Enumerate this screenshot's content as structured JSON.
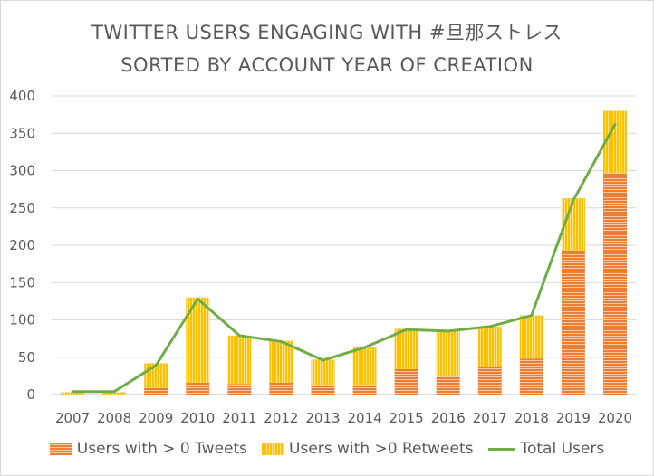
{
  "chart_data": {
    "type": "bar",
    "title_line1": "TWITTER USERS ENGAGING WITH #旦那ストレス",
    "title_line2": "SORTED BY ACCOUNT YEAR OF CREATION",
    "categories": [
      "2007",
      "2008",
      "2009",
      "2010",
      "2011",
      "2012",
      "2013",
      "2014",
      "2015",
      "2016",
      "2017",
      "2018",
      "2019",
      "2020"
    ],
    "series": [
      {
        "name": "Users with > 0 Tweets",
        "kind": "stacked-bar",
        "color": "#ED7D31",
        "values": [
          0,
          0,
          9,
          16,
          14,
          16,
          13,
          13,
          34,
          24,
          37,
          48,
          193,
          297
        ]
      },
      {
        "name": "Users with >0 Retweets",
        "kind": "stacked-bar",
        "color": "#FFC000",
        "values": [
          3,
          3,
          33,
          114,
          65,
          56,
          34,
          50,
          54,
          62,
          54,
          58,
          70,
          83
        ]
      },
      {
        "name": "Total Users",
        "kind": "line",
        "color": "#70AD47",
        "values": [
          4,
          4,
          39,
          128,
          79,
          71,
          46,
          63,
          87,
          85,
          91,
          106,
          260,
          362
        ]
      }
    ],
    "yticks": [
      "0",
      "50",
      "100",
      "150",
      "200",
      "250",
      "300",
      "350",
      "400"
    ],
    "ylim": [
      0,
      400
    ],
    "grid": true,
    "legend_position": "bottom"
  }
}
